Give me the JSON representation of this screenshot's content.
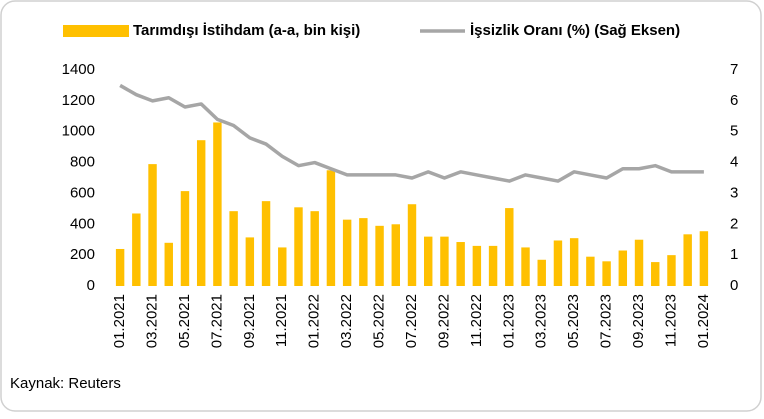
{
  "chart_data": {
    "type": "bar_line",
    "categories": [
      "01.2021",
      null,
      "03.2021",
      null,
      "05.2021",
      null,
      "07.2021",
      null,
      "09.2021",
      null,
      "11.2021",
      null,
      "01.2022",
      null,
      "03.2022",
      null,
      "05.2022",
      null,
      "07.2022",
      null,
      "09.2022",
      null,
      "11.2022",
      null,
      "01.2023",
      null,
      "03.2023",
      null,
      "05.2023",
      null,
      "07.2023",
      null,
      "09.2023",
      null,
      "11.2023",
      null,
      "01.2024"
    ],
    "series": [
      {
        "name": "Tarımdışı İstihdam (a-a, bin kişi)",
        "color": "#FFC000",
        "type": "bar",
        "axis": "y",
        "values": [
          240,
          470,
          790,
          280,
          615,
          945,
          1060,
          485,
          315,
          550,
          250,
          510,
          485,
          750,
          430,
          440,
          390,
          400,
          530,
          320,
          320,
          285,
          260,
          260,
          505,
          250,
          170,
          295,
          310,
          190,
          160,
          230,
          300,
          155,
          200,
          335,
          355
        ]
      },
      {
        "name": "İşsizlik Oranı (%) (Sağ Eksen)",
        "color": "#A6A6A6",
        "type": "line",
        "axis": "y2",
        "values": [
          6.5,
          6.2,
          6.0,
          6.1,
          5.8,
          5.9,
          5.4,
          5.2,
          4.8,
          4.6,
          4.2,
          3.9,
          4.0,
          3.8,
          3.6,
          3.6,
          3.6,
          3.6,
          3.5,
          3.7,
          3.5,
          3.7,
          3.6,
          3.5,
          3.4,
          3.6,
          3.5,
          3.4,
          3.7,
          3.6,
          3.5,
          3.8,
          3.8,
          3.9,
          3.7,
          3.7,
          3.7
        ]
      }
    ],
    "ylim": [
      0,
      1400
    ],
    "yticks": [
      0,
      200,
      400,
      600,
      800,
      1000,
      1200,
      1400
    ],
    "y2lim": [
      0,
      7
    ],
    "y2ticks": [
      0,
      1,
      2,
      3,
      4,
      5,
      6,
      7
    ],
    "legend": "top",
    "source": "Kaynak: Reuters"
  }
}
